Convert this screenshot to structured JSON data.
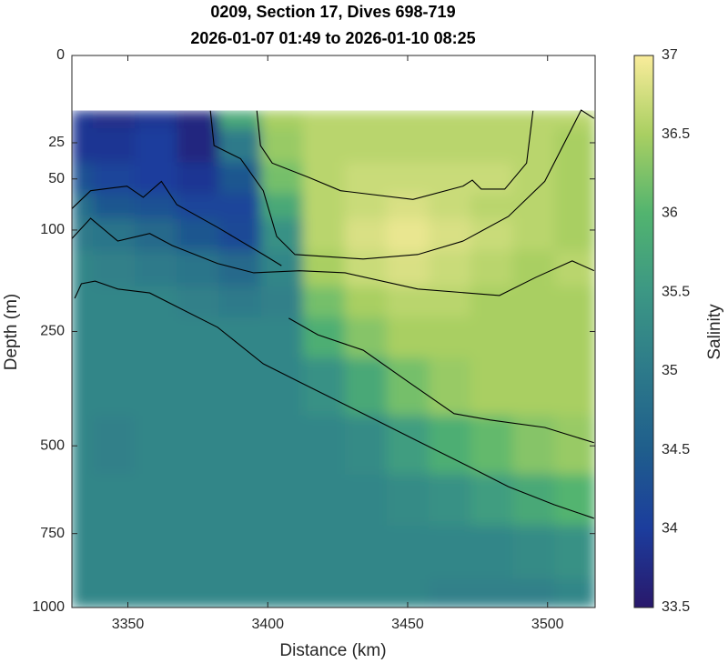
{
  "chart_data": {
    "type": "contour",
    "title": [
      "0209, Section 17, Dives 698-719",
      "2026-01-07 01:49 to 2026-01-10 08:25"
    ],
    "xlabel": "Distance (km)",
    "ylabel": "Depth (m)",
    "colorbar_label": "Salinity",
    "xlim": [
      3330,
      3517
    ],
    "xticks": [
      3350,
      3400,
      3450,
      3500
    ],
    "ylim": [
      0,
      1000
    ],
    "yticks": [
      0,
      25,
      50,
      100,
      250,
      500,
      750,
      1000
    ],
    "yscale": "sqrt",
    "yreverse": true,
    "clim": [
      33.5,
      37
    ],
    "cticks": [
      33.5,
      34,
      34.5,
      35,
      35.5,
      36,
      36.5,
      37
    ],
    "colormap": [
      "#29186b",
      "#1c3d9d",
      "#1f5e8c",
      "#2d7a8a",
      "#3c9784",
      "#52b46f",
      "#a9cf62",
      "#f9ec9b"
    ],
    "contour_color": "#000000",
    "x": [
      3330,
      3345,
      3360,
      3375,
      3390,
      3405,
      3420,
      3435,
      3450,
      3465,
      3480,
      3495,
      3510
    ],
    "depth": [
      10,
      25,
      50,
      75,
      100,
      150,
      200,
      250,
      350,
      500,
      650,
      800,
      1000
    ],
    "z": [
      [
        33.9,
        33.8,
        33.9,
        33.7,
        35.8,
        36.5,
        36.6,
        36.6,
        36.6,
        36.6,
        36.6,
        36.6,
        36.6
      ],
      [
        33.9,
        33.9,
        34.0,
        33.7,
        35.0,
        36.4,
        36.6,
        36.6,
        36.6,
        36.6,
        36.6,
        36.6,
        36.5
      ],
      [
        34.3,
        34.1,
        34.0,
        33.9,
        34.4,
        36.2,
        36.6,
        36.7,
        36.7,
        36.7,
        36.7,
        36.6,
        36.5
      ],
      [
        34.8,
        34.4,
        34.3,
        34.1,
        34.1,
        35.8,
        36.6,
        36.7,
        36.8,
        36.7,
        36.6,
        36.6,
        36.5
      ],
      [
        35.0,
        34.9,
        34.7,
        34.4,
        34.2,
        35.4,
        36.6,
        36.8,
        36.9,
        36.8,
        36.7,
        36.6,
        36.5
      ],
      [
        35.2,
        35.1,
        35.0,
        34.9,
        34.7,
        35.2,
        36.5,
        36.7,
        36.8,
        36.7,
        36.6,
        36.5,
        36.6
      ],
      [
        35.2,
        35.2,
        35.2,
        35.1,
        35.0,
        35.1,
        36.2,
        36.5,
        36.6,
        36.6,
        36.5,
        36.5,
        36.5
      ],
      [
        35.2,
        35.2,
        35.2,
        35.2,
        35.2,
        35.2,
        35.9,
        36.3,
        36.5,
        36.5,
        36.5,
        36.5,
        36.5
      ],
      [
        35.2,
        35.2,
        35.2,
        35.2,
        35.2,
        35.2,
        35.4,
        35.8,
        36.2,
        36.4,
        36.5,
        36.5,
        36.5
      ],
      [
        35.2,
        35.1,
        35.2,
        35.2,
        35.2,
        35.2,
        35.2,
        35.3,
        35.6,
        35.9,
        36.1,
        36.3,
        36.4
      ],
      [
        35.2,
        35.2,
        35.2,
        35.2,
        35.2,
        35.2,
        35.2,
        35.2,
        35.3,
        35.4,
        35.6,
        35.8,
        36.0
      ],
      [
        35.2,
        35.2,
        35.2,
        35.2,
        35.2,
        35.2,
        35.2,
        35.2,
        35.2,
        35.2,
        35.2,
        35.3,
        35.4
      ],
      [
        35.2,
        35.2,
        35.2,
        35.2,
        35.2,
        35.2,
        35.2,
        35.2,
        35.2,
        35.1,
        35.1,
        35.1,
        35.2
      ]
    ],
    "contours": [
      {
        "x": [
          3396.1,
          3397.4,
          3401.6,
          3414.6,
          3426,
          3451.9,
          3469.8,
          3473.1,
          3476.3,
          3484.7,
          3492.5,
          3494.8
        ],
        "y": [
          10,
          26.6,
          38,
          48.7,
          60,
          68,
          56,
          51,
          58.6,
          58.6,
          38,
          10
        ]
      },
      {
        "x": [
          3379.5,
          3380.8,
          3390.3,
          3398.4,
          3403.2,
          3409.7,
          3434.1,
          3453.6,
          3469.8,
          3486,
          3499,
          3512,
          3516.6
        ],
        "y": [
          10,
          26.6,
          35,
          60,
          107.5,
          130,
          136,
          130,
          113,
          85,
          52,
          9.8,
          13
        ],
        "_": null
      },
      {
        "x": [
          3330,
          3336.7,
          3346.4,
          3357.8,
          3365.9,
          3382.1,
          3395,
          3411.4,
          3427.6,
          3453.6,
          3482.8,
          3495.8,
          3508.8,
          3516.6
        ],
        "y": [
          110,
          87,
          113,
          104,
          118.5,
          142,
          155,
          152,
          155,
          179,
          189,
          161.5,
          138.5,
          152
        ]
      },
      {
        "x": [
          3330,
          3336.7,
          3349.7,
          3355.5,
          3362,
          3367.5,
          3382.1,
          3398.4,
          3404.9
        ],
        "y": [
          77,
          60,
          56,
          66,
          52,
          73,
          97,
          130,
          145
        ]
      },
      {
        "x": [
          3331,
          3333.4,
          3338.3,
          3346.4,
          3357.8,
          3369.2,
          3382.1,
          3398.4,
          3411.4,
          3434.1,
          3453.6,
          3473.1,
          3486,
          3502.3,
          3516.6
        ],
        "y": [
          193.5,
          171,
          167,
          179,
          185,
          211,
          242.5,
          312,
          350,
          421,
          488,
          559,
          610,
          662,
          703
        ]
      },
      {
        "x": [
          3407.5,
          3417.9,
          3434.1,
          3450.3,
          3466.6,
          3479.5,
          3499,
          3516.6
        ],
        "y": [
          226.5,
          256,
          285,
          350,
          421,
          436,
          454,
          492
        ]
      }
    ]
  }
}
